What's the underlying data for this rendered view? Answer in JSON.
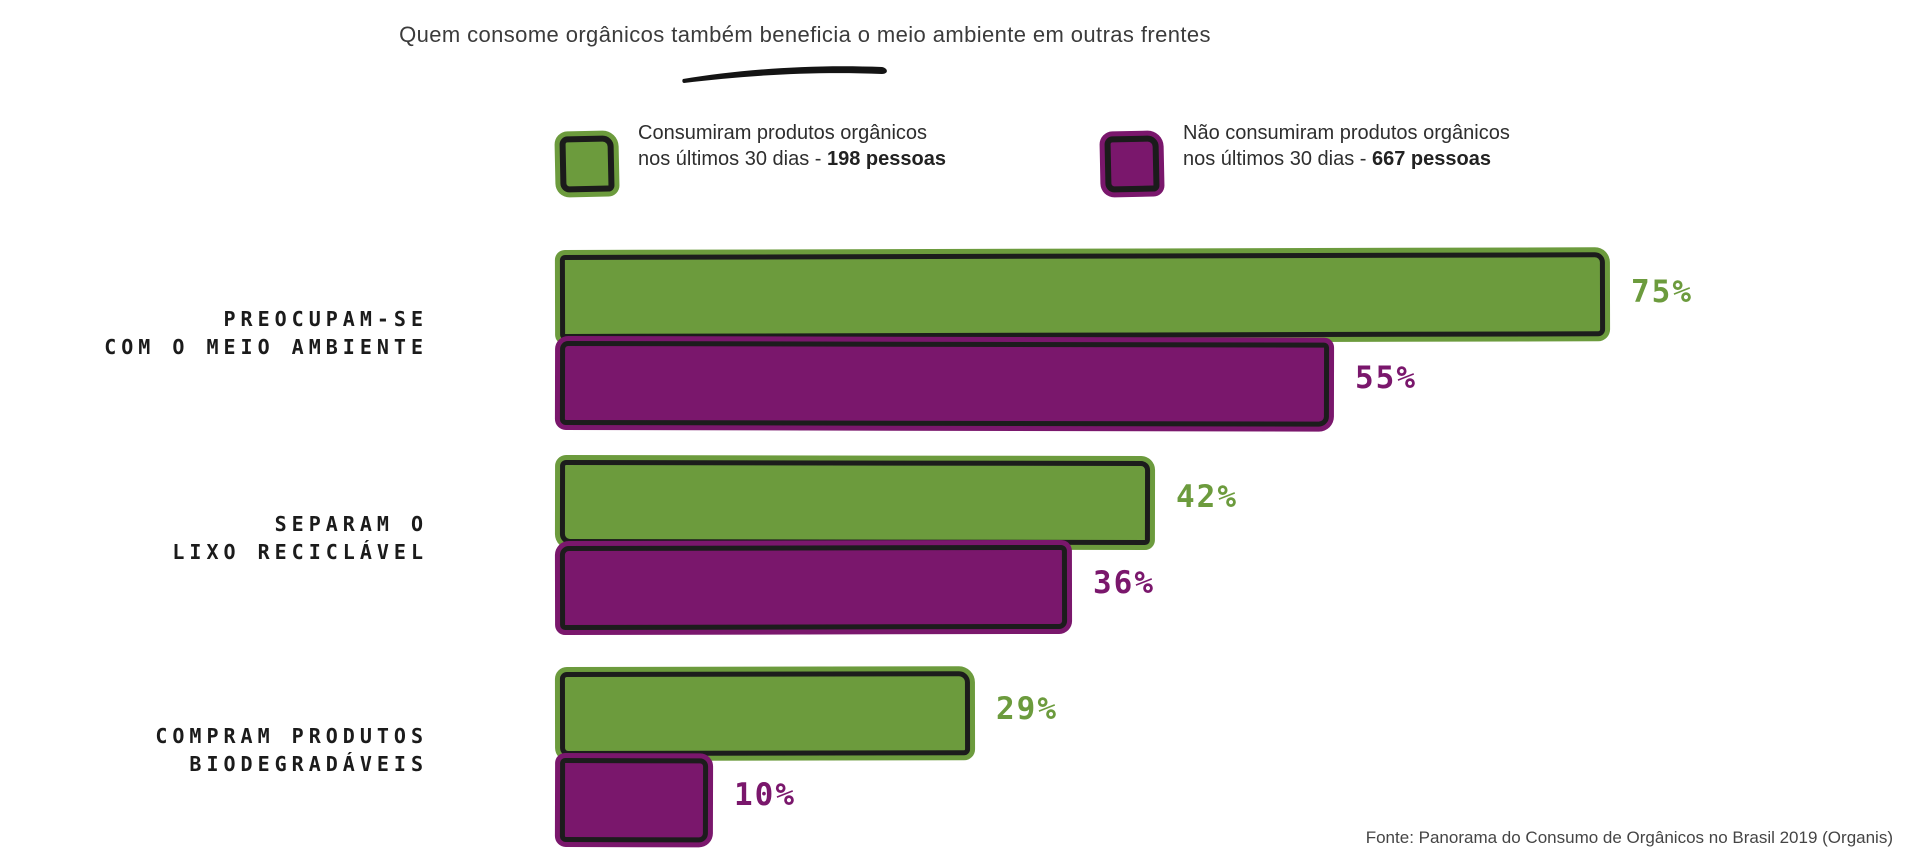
{
  "title": "Quem consome orgânicos também beneficia o meio ambiente em outras frentes",
  "legend": {
    "items": [
      {
        "swatch_color": "#6C9B3D",
        "line1": "Consumiram produtos orgânicos",
        "line2_prefix": "nos últimos 30 dias - ",
        "line2_bold": "198 pessoas"
      },
      {
        "swatch_color": "#7A176C",
        "line1": "Não consumiram produtos orgânicos",
        "line2_prefix": "nos últimos 30 dias - ",
        "line2_bold": "667 pessoas"
      }
    ]
  },
  "chart_data": {
    "type": "bar",
    "orientation": "horizontal",
    "title": "Quem consome orgânicos também beneficia o meio ambiente em outras frentes",
    "categories": [
      "PREOCUPAM-SE COM O MEIO AMBIENTE",
      "SEPARAM O LIXO RECICLÁVEL",
      "COMPRAM PRODUTOS BIODEGRADÁVEIS"
    ],
    "category_label_lines": [
      [
        "PREOCUPAM-SE",
        "COM O MEIO AMBIENTE"
      ],
      [
        "SEPARAM O",
        "LIXO RECICLÁVEL"
      ],
      [
        "COMPRAM PRODUTOS",
        "BIODEGRADÁVEIS"
      ]
    ],
    "series": [
      {
        "name": "Consumiram produtos orgânicos nos últimos 30 dias - 198 pessoas",
        "color": "#6C9B3D",
        "values": [
          75,
          42,
          29
        ]
      },
      {
        "name": "Não consumiram produtos orgânicos nos últimos 30 dias - 667 pessoas",
        "color": "#7A176C",
        "values": [
          55,
          36,
          10
        ]
      }
    ],
    "value_labels": [
      [
        "75%",
        "55%"
      ],
      [
        "42%",
        "36%"
      ],
      [
        "29%",
        "10%"
      ]
    ],
    "value_suffix": "%",
    "xlim": [
      0,
      100
    ],
    "grid": false,
    "legend_position": "top"
  },
  "source": "Fonte: Panorama do Consumo de Orgânicos no Brasil 2019 (Organis)",
  "colors": {
    "green": "#6C9B3D",
    "purple": "#7A176C",
    "outline": "#1C1C1C",
    "title_text": "#3B3B3B",
    "source_text": "#454545"
  }
}
